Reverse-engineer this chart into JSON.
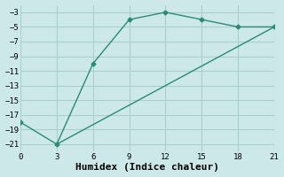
{
  "xlabel": "Humidex (Indice chaleur)",
  "line1_x": [
    0,
    3,
    6,
    9,
    12,
    15,
    18,
    21
  ],
  "line1_y": [
    -18,
    -21,
    -10,
    -4,
    -3,
    -4,
    -5,
    -5
  ],
  "line2_x": [
    3,
    21
  ],
  "line2_y": [
    -21,
    -5
  ],
  "line_color": "#2a8a78",
  "marker": "D",
  "marker_size": 2.5,
  "line_width": 1.0,
  "bg_color": "#cde8e8",
  "grid_color": "#aacfcf",
  "xlim": [
    0,
    21
  ],
  "ylim": [
    -22,
    -2
  ],
  "xticks": [
    0,
    3,
    6,
    9,
    12,
    15,
    18,
    21
  ],
  "yticks": [
    -21,
    -19,
    -17,
    -15,
    -13,
    -11,
    -9,
    -7,
    -5,
    -3
  ],
  "tick_fontsize": 6.5,
  "xlabel_fontsize": 8,
  "font_family": "monospace"
}
